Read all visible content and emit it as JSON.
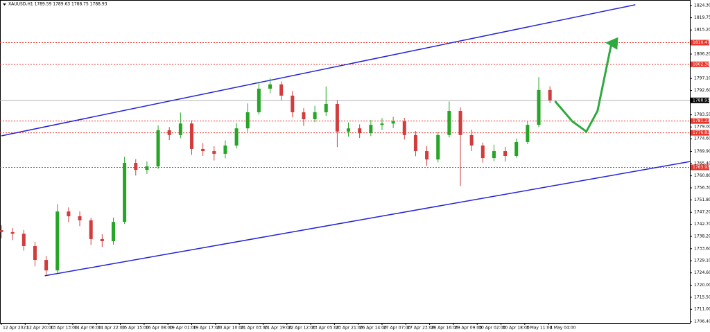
{
  "chart_data": {
    "type": "candlestick",
    "title": "XAUUSD,H1  1789.59 1789.63 1788.75 1788.93",
    "x": [
      0,
      8,
      16,
      24,
      32,
      40,
      48,
      56,
      64,
      72,
      80,
      88,
      96,
      104,
      112,
      120,
      128,
      136,
      144,
      152,
      160,
      168,
      176,
      184,
      192,
      200,
      208,
      216,
      224,
      232,
      240,
      248,
      256,
      264,
      272,
      280,
      288,
      296,
      304,
      312,
      320,
      328,
      336,
      344,
      352,
      360,
      368,
      376,
      384,
      392
    ],
    "open": [
      1740.5,
      1739.8,
      1739.2,
      1734.6,
      1729.4,
      1725.5,
      1747.5,
      1745.7,
      1744.2,
      1737.2,
      1736.4,
      1743.6,
      1765.6,
      1763.0,
      1764.3,
      1777.8,
      1776.0,
      1780.3,
      1770.8,
      1770.0,
      1769.0,
      1772.1,
      1778.5,
      1784.5,
      1793.3,
      1794.9,
      1790.7,
      1784.5,
      1781.9,
      1784.5,
      1787.6,
      1777.3,
      1778.5,
      1776.7,
      1779.8,
      1780.3,
      1781.1,
      1776.0,
      1770.0,
      1766.9,
      1776.0,
      1785.0,
      1776.0,
      1772.1,
      1767.4,
      1770.0,
      1768.2,
      1773.4,
      1779.8,
      1792.8
    ],
    "high": [
      1742.4,
      1741.3,
      1740.6,
      1736.2,
      1730.9,
      1750.2,
      1749.0,
      1747.5,
      1745.1,
      1739.0,
      1745.2,
      1767.9,
      1767.0,
      1766.2,
      1779.6,
      1779.0,
      1784.4,
      1781.5,
      1773.0,
      1771.8,
      1774.0,
      1780.5,
      1787.8,
      1795.8,
      1797.2,
      1796.0,
      1792.4,
      1786.0,
      1786.9,
      1794.1,
      1789.0,
      1780.7,
      1780.0,
      1781.6,
      1782.3,
      1782.8,
      1782.4,
      1777.5,
      1771.9,
      1777.2,
      1788.5,
      1786.3,
      1778.0,
      1773.2,
      1772.4,
      1771.6,
      1774.7,
      1781.3,
      1797.6,
      1794.2
    ],
    "low": [
      1737.5,
      1736.8,
      1732.9,
      1727.0,
      1723.8,
      1724.6,
      1743.5,
      1742.0,
      1735.0,
      1734.2,
      1735.1,
      1742.8,
      1760.9,
      1761.5,
      1763.4,
      1774.1,
      1774.8,
      1768.6,
      1768.2,
      1766.5,
      1767.3,
      1771.0,
      1777.2,
      1783.6,
      1791.5,
      1789.0,
      1782.6,
      1779.4,
      1780.8,
      1783.2,
      1771.5,
      1775.4,
      1774.9,
      1775.6,
      1777.9,
      1778.6,
      1774.3,
      1768.1,
      1764.5,
      1765.8,
      1775.1,
      1757.0,
      1770.0,
      1765.7,
      1766.2,
      1766.1,
      1767.5,
      1772.6,
      1778.9,
      1787.9
    ],
    "close": [
      1739.8,
      1739.2,
      1734.6,
      1729.4,
      1725.5,
      1747.5,
      1745.7,
      1744.2,
      1737.2,
      1736.4,
      1743.6,
      1765.6,
      1763.0,
      1764.3,
      1777.8,
      1776.0,
      1780.3,
      1770.8,
      1770.0,
      1769.0,
      1772.1,
      1778.5,
      1784.5,
      1793.3,
      1794.9,
      1790.7,
      1784.5,
      1781.9,
      1784.5,
      1787.6,
      1777.3,
      1778.5,
      1776.7,
      1779.8,
      1780.3,
      1781.1,
      1776.0,
      1770.0,
      1766.9,
      1776.0,
      1785.0,
      1776.0,
      1772.1,
      1767.4,
      1770.0,
      1768.2,
      1773.4,
      1779.8,
      1792.8,
      1788.93
    ],
    "up_color": "#26a526",
    "down_color": "#d23c3c",
    "xlim": [
      -1,
      492
    ],
    "ylim": [
      1706.15,
      1826.37
    ],
    "xticks": [
      {
        "value": 0,
        "label": "12 Apr 2021"
      },
      {
        "value": 17,
        "label": "12 Apr 20:00"
      },
      {
        "value": 34,
        "label": "13 Apr 13:00"
      },
      {
        "value": 51,
        "label": "14 Apr 06:00"
      },
      {
        "value": 68,
        "label": "14 Apr 22:00"
      },
      {
        "value": 85,
        "label": "15 Apr 15:00"
      },
      {
        "value": 102,
        "label": "16 Apr 08:00"
      },
      {
        "value": 119,
        "label": "19 Apr 01:00"
      },
      {
        "value": 136,
        "label": "19 Apr 17:00"
      },
      {
        "value": 153,
        "label": "20 Apr 10:00"
      },
      {
        "value": 170,
        "label": "21 Apr 03:00"
      },
      {
        "value": 187,
        "label": "21 Apr 19:00"
      },
      {
        "value": 204,
        "label": "22 Apr 12:00"
      },
      {
        "value": 221,
        "label": "23 Apr 05:00"
      },
      {
        "value": 238,
        "label": "23 Apr 21:00"
      },
      {
        "value": 255,
        "label": "26 Apr 14:00"
      },
      {
        "value": 272,
        "label": "27 Apr 07:00"
      },
      {
        "value": 289,
        "label": "27 Apr 23:00"
      },
      {
        "value": 306,
        "label": "28 Apr 16:00"
      },
      {
        "value": 323,
        "label": "29 Apr 09:00"
      },
      {
        "value": 340,
        "label": "30 Apr 02:00"
      },
      {
        "value": 357,
        "label": "30 Apr 18:00"
      },
      {
        "value": 374,
        "label": "3 May 11:00"
      },
      {
        "value": 391,
        "label": "4 May 04:00"
      }
    ],
    "yticks": [
      {
        "value": 1824.3,
        "label": "1824.30"
      },
      {
        "value": 1819.75,
        "label": "1819.75"
      },
      {
        "value": 1815.2,
        "label": "1815.20"
      },
      {
        "value": 1806.2,
        "label": "1806.20"
      },
      {
        "value": 1797.1,
        "label": "1797.10"
      },
      {
        "value": 1792.6,
        "label": "1792.60"
      },
      {
        "value": 1783.55,
        "label": "1783.55"
      },
      {
        "value": 1779.0,
        "label": "1779.00"
      },
      {
        "value": 1774.6,
        "label": "1774.60"
      },
      {
        "value": 1769.9,
        "label": "1769.90"
      },
      {
        "value": 1765.4,
        "label": "1765.40"
      },
      {
        "value": 1760.8,
        "label": "1760.80"
      },
      {
        "value": 1756.3,
        "label": "1756.30"
      },
      {
        "value": 1751.8,
        "label": "1751.80"
      },
      {
        "value": 1747.2,
        "label": "1747.20"
      },
      {
        "value": 1742.7,
        "label": "1742.70"
      },
      {
        "value": 1738.2,
        "label": "1738.20"
      },
      {
        "value": 1733.6,
        "label": "1733.60"
      },
      {
        "value": 1729.1,
        "label": "1729.10"
      },
      {
        "value": 1724.6,
        "label": "1724.60"
      },
      {
        "value": 1720.0,
        "label": "1720.00"
      },
      {
        "value": 1715.5,
        "label": "1715.50"
      },
      {
        "value": 1711.0,
        "label": "1711.00"
      },
      {
        "value": 1706.4,
        "label": "1706.40"
      }
    ],
    "levels": [
      1810.47,
      1802.38,
      1781.23,
      1776.83,
      1763.93
    ],
    "level_color": "#e8352b",
    "current_price": 1788.93,
    "trendlines": [
      {
        "x": [
          0,
          453
        ],
        "y": [
          1775.7,
          1824.6
        ],
        "color": "#2323d6"
      },
      {
        "x": [
          31,
          492
        ],
        "y": [
          1723.5,
          1766.1
        ],
        "color": "#2323d6"
      }
    ],
    "projection": {
      "x": [
        396,
        408,
        418,
        426,
        436
      ],
      "y": [
        1788.4,
        1781.1,
        1777.3,
        1785.0,
        1810.3
      ],
      "color": "#2eaa3e"
    }
  }
}
